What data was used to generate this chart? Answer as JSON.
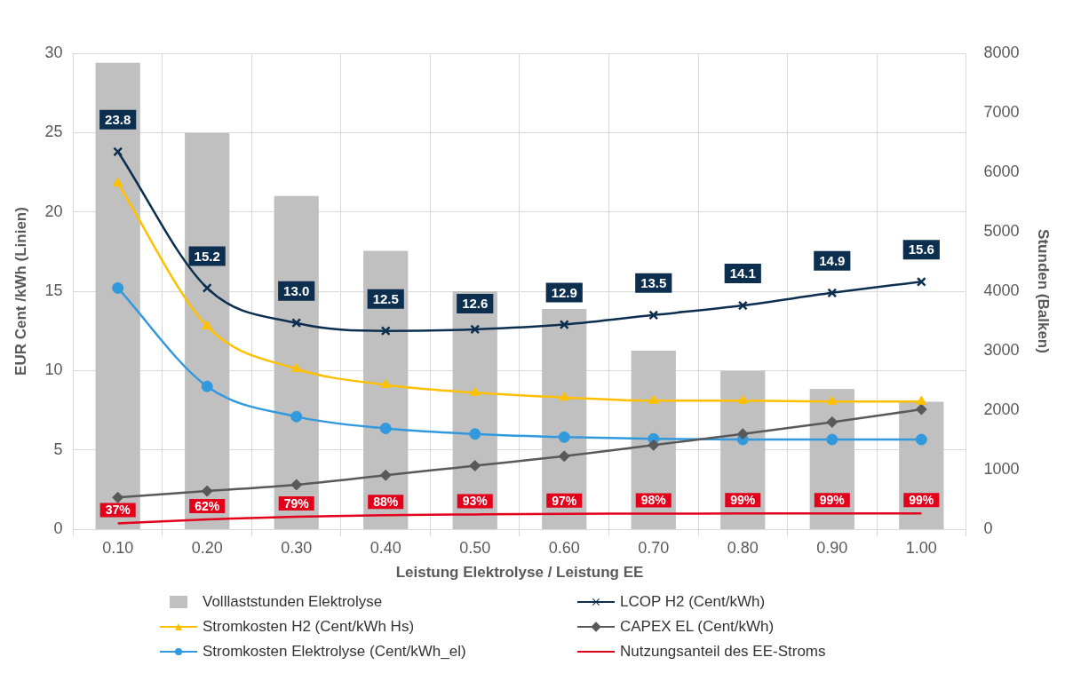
{
  "chart_data": {
    "type": "bar",
    "xlabel": "Leistung Elektrolyse / Leistung EE",
    "ylabel": "EUR Cent /kWh (Linien)",
    "y2label": "Stunden (Balken)",
    "categories": [
      "0.10",
      "0.20",
      "0.30",
      "0.40",
      "0.50",
      "0.60",
      "0.70",
      "0.80",
      "0.90",
      "1.00"
    ],
    "ylim": [
      0,
      30
    ],
    "yticks": [
      0,
      5,
      10,
      15,
      20,
      25,
      30
    ],
    "y2lim": [
      0,
      8000
    ],
    "y2ticks": [
      0,
      1000,
      2000,
      3000,
      4000,
      5000,
      6000,
      7000,
      8000
    ],
    "grid": true,
    "legend": "bottom",
    "series": [
      {
        "name": "Volllaststunden Elektrolyse",
        "type": "bar",
        "axis": "y2",
        "color": "#c0c0c0",
        "values": [
          7840,
          6660,
          5600,
          4680,
          4000,
          3700,
          3000,
          2660,
          2360,
          2140
        ]
      },
      {
        "name": "LCOP H2 (Cent/kWh)",
        "type": "line",
        "marker": "cross",
        "color": "#0d2f4f",
        "values": [
          23.8,
          15.2,
          13.0,
          12.5,
          12.6,
          12.9,
          13.5,
          14.1,
          14.9,
          15.6
        ],
        "value_labels": [
          "23.8",
          "15.2",
          "13.0",
          "12.5",
          "12.6",
          "12.9",
          "13.5",
          "14.1",
          "14.9",
          "15.6"
        ]
      },
      {
        "name": "Stromkosten H2 (Cent/kWh Hs)",
        "type": "line",
        "marker": "triangle",
        "color": "#ffc000",
        "values": [
          21.8,
          12.8,
          10.1,
          9.1,
          8.6,
          8.3,
          8.1,
          8.1,
          8.05,
          8.05
        ]
      },
      {
        "name": "CAPEX EL (Cent/kWh)",
        "type": "line",
        "marker": "diamond",
        "color": "#595959",
        "values": [
          2.0,
          2.4,
          2.8,
          3.4,
          4.0,
          4.6,
          5.3,
          6.0,
          6.75,
          7.55
        ]
      },
      {
        "name": "Stromkosten Elektrolyse (Cent/kWh_el)",
        "type": "line",
        "marker": "circle",
        "color": "#3399dd",
        "values": [
          15.2,
          9.0,
          7.1,
          6.35,
          6.0,
          5.8,
          5.7,
          5.65,
          5.65,
          5.65
        ]
      },
      {
        "name": "Nutzungsanteil des EE-Stroms",
        "type": "line",
        "marker": "none",
        "color": "#e2001a",
        "values": [
          0.37,
          0.62,
          0.79,
          0.88,
          0.93,
          0.97,
          0.98,
          0.99,
          0.99,
          0.99
        ],
        "value_labels": [
          "37%",
          "62%",
          "79%",
          "88%",
          "93%",
          "97%",
          "98%",
          "99%",
          "99%",
          "99%"
        ]
      }
    ]
  }
}
